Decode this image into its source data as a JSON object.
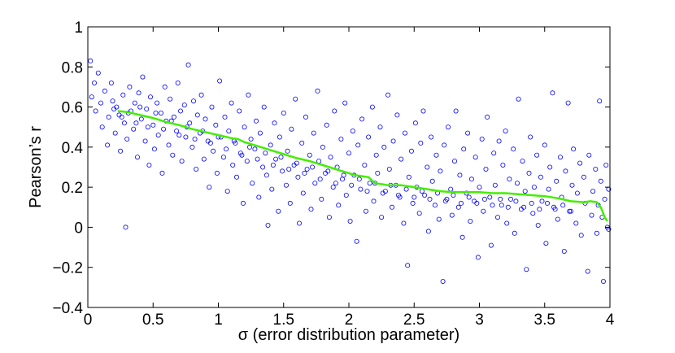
{
  "chart_data": {
    "type": "scatter",
    "title": "",
    "xlabel": "σ (error distribution parameter)",
    "ylabel": "Pearson’s r",
    "xlim": [
      0,
      4
    ],
    "ylim": [
      -0.4,
      1
    ],
    "x_ticks": [
      0,
      0.5,
      1,
      1.5,
      2,
      2.5,
      3,
      3.5,
      4
    ],
    "x_tick_labels": [
      "0",
      "0.5",
      "1",
      "1.5",
      "2",
      "2.5",
      "3",
      "3.5",
      "4"
    ],
    "y_ticks": [
      -0.4,
      -0.2,
      0,
      0.2,
      0.4,
      0.6,
      0.8,
      1
    ],
    "y_tick_labels": [
      "−0.4",
      "−0.2",
      "0",
      "0.2",
      "0.4",
      "0.6",
      "0.8",
      "1"
    ],
    "grid": false,
    "legend": "none",
    "colors": {
      "points": "#0000ff",
      "trend": "#44ee00"
    },
    "scatter_points": [
      [
        0.02,
        0.83
      ],
      [
        0.03,
        0.65
      ],
      [
        0.05,
        0.72
      ],
      [
        0.06,
        0.58
      ],
      [
        0.08,
        0.77
      ],
      [
        0.1,
        0.62
      ],
      [
        0.11,
        0.5
      ],
      [
        0.13,
        0.68
      ],
      [
        0.15,
        0.41
      ],
      [
        0.16,
        0.55
      ],
      [
        0.18,
        0.72
      ],
      [
        0.19,
        0.63
      ],
      [
        0.21,
        0.47
      ],
      [
        0.22,
        0.6
      ],
      [
        0.24,
        0.56
      ],
      [
        0.25,
        0.38
      ],
      [
        0.27,
        0.66
      ],
      [
        0.28,
        0.52
      ],
      [
        0.29,
        0.0
      ],
      [
        0.3,
        0.44
      ],
      [
        0.32,
        0.7
      ],
      [
        0.33,
        0.58
      ],
      [
        0.35,
        0.49
      ],
      [
        0.36,
        0.62
      ],
      [
        0.38,
        0.35
      ],
      [
        0.39,
        0.67
      ],
      [
        0.41,
        0.54
      ],
      [
        0.42,
        0.75
      ],
      [
        0.44,
        0.43
      ],
      [
        0.45,
        0.59
      ],
      [
        0.47,
        0.31
      ],
      [
        0.48,
        0.65
      ],
      [
        0.5,
        0.51
      ],
      [
        0.51,
        0.39
      ],
      [
        0.53,
        0.62
      ],
      [
        0.54,
        0.46
      ],
      [
        0.56,
        0.57
      ],
      [
        0.57,
        0.27
      ],
      [
        0.59,
        0.7
      ],
      [
        0.6,
        0.53
      ],
      [
        0.62,
        0.41
      ],
      [
        0.63,
        0.64
      ],
      [
        0.65,
        0.36
      ],
      [
        0.66,
        0.55
      ],
      [
        0.68,
        0.48
      ],
      [
        0.69,
        0.72
      ],
      [
        0.71,
        0.58
      ],
      [
        0.72,
        0.33
      ],
      [
        0.74,
        0.61
      ],
      [
        0.75,
        0.45
      ],
      [
        0.77,
        0.81
      ],
      [
        0.78,
        0.52
      ],
      [
        0.8,
        0.4
      ],
      [
        0.81,
        0.63
      ],
      [
        0.83,
        0.29
      ],
      [
        0.84,
        0.56
      ],
      [
        0.86,
        0.47
      ],
      [
        0.87,
        0.66
      ],
      [
        0.89,
        0.34
      ],
      [
        0.9,
        0.54
      ],
      [
        0.92,
        0.43
      ],
      [
        0.93,
        0.2
      ],
      [
        0.95,
        0.6
      ],
      [
        0.96,
        0.38
      ],
      [
        0.98,
        0.51
      ],
      [
        0.99,
        0.27
      ],
      [
        1.01,
        0.73
      ],
      [
        1.02,
        0.45
      ],
      [
        1.04,
        0.35
      ],
      [
        1.05,
        0.55
      ],
      [
        1.07,
        0.18
      ],
      [
        1.08,
        0.48
      ],
      [
        1.1,
        0.62
      ],
      [
        1.11,
        0.31
      ],
      [
        1.13,
        0.42
      ],
      [
        1.14,
        0.25
      ],
      [
        1.16,
        0.58
      ],
      [
        1.17,
        0.37
      ],
      [
        1.19,
        0.12
      ],
      [
        1.2,
        0.5
      ],
      [
        1.22,
        0.33
      ],
      [
        1.23,
        0.66
      ],
      [
        1.25,
        0.44
      ],
      [
        1.26,
        0.22
      ],
      [
        1.28,
        0.39
      ],
      [
        1.29,
        0.53
      ],
      [
        1.31,
        0.15
      ],
      [
        1.32,
        0.47
      ],
      [
        1.34,
        0.3
      ],
      [
        1.35,
        0.6
      ],
      [
        1.37,
        0.26
      ],
      [
        1.38,
        0.01
      ],
      [
        1.4,
        0.41
      ],
      [
        1.41,
        0.19
      ],
      [
        1.43,
        0.52
      ],
      [
        1.44,
        0.34
      ],
      [
        1.46,
        0.08
      ],
      [
        1.47,
        0.45
      ],
      [
        1.49,
        0.28
      ],
      [
        1.5,
        0.57
      ],
      [
        1.52,
        0.21
      ],
      [
        1.53,
        0.38
      ],
      [
        1.55,
        0.12
      ],
      [
        1.56,
        0.49
      ],
      [
        1.58,
        0.31
      ],
      [
        1.59,
        0.64
      ],
      [
        1.61,
        0.25
      ],
      [
        1.62,
        0.02
      ],
      [
        1.64,
        0.42
      ],
      [
        1.65,
        0.17
      ],
      [
        1.67,
        0.55
      ],
      [
        1.68,
        0.29
      ],
      [
        1.7,
        0.36
      ],
      [
        1.71,
        0.09
      ],
      [
        1.73,
        0.47
      ],
      [
        1.74,
        0.22
      ],
      [
        1.76,
        0.68
      ],
      [
        1.77,
        0.33
      ],
      [
        1.79,
        0.14
      ],
      [
        1.8,
        0.4
      ],
      [
        1.82,
        0.27
      ],
      [
        1.83,
        0.51
      ],
      [
        1.85,
        0.05
      ],
      [
        1.86,
        0.35
      ],
      [
        1.88,
        0.2
      ],
      [
        1.89,
        0.58
      ],
      [
        1.91,
        0.3
      ],
      [
        1.92,
        0.11
      ],
      [
        1.94,
        0.44
      ],
      [
        1.95,
        0.24
      ],
      [
        1.97,
        0.62
      ],
      [
        1.98,
        0.16
      ],
      [
        2.0,
        0.37
      ],
      [
        2.01,
        0.03
      ],
      [
        2.03,
        0.48
      ],
      [
        2.04,
        0.26
      ],
      [
        2.06,
        -0.07
      ],
      [
        2.07,
        0.41
      ],
      [
        2.09,
        0.19
      ],
      [
        2.1,
        0.54
      ],
      [
        2.12,
        0.31
      ],
      [
        2.13,
        0.08
      ],
      [
        2.15,
        0.45
      ],
      [
        2.16,
        0.22
      ],
      [
        2.18,
        0.6
      ],
      [
        2.19,
        0.13
      ],
      [
        2.21,
        0.36
      ],
      [
        2.22,
        0.27
      ],
      [
        2.24,
        0.5
      ],
      [
        2.25,
        0.05
      ],
      [
        2.27,
        0.4
      ],
      [
        2.28,
        0.18
      ],
      [
        2.3,
        0.66
      ],
      [
        2.31,
        0.29
      ],
      [
        2.33,
        0.1
      ],
      [
        2.34,
        0.43
      ],
      [
        2.36,
        0.21
      ],
      [
        2.37,
        0.56
      ],
      [
        2.39,
        0.15
      ],
      [
        2.4,
        0.34
      ],
      [
        2.42,
        0.02
      ],
      [
        2.43,
        0.47
      ],
      [
        2.45,
        -0.19
      ],
      [
        2.46,
        0.25
      ],
      [
        2.48,
        0.38
      ],
      [
        2.49,
        0.12
      ],
      [
        2.51,
        0.52
      ],
      [
        2.52,
        0.2
      ],
      [
        2.54,
        0.07
      ],
      [
        2.55,
        0.42
      ],
      [
        2.57,
        0.58
      ],
      [
        2.58,
        0.16
      ],
      [
        2.6,
        0.3
      ],
      [
        2.61,
        -0.02
      ],
      [
        2.63,
        0.45
      ],
      [
        2.64,
        0.23
      ],
      [
        2.66,
        0.11
      ],
      [
        2.67,
        0.36
      ],
      [
        2.69,
        0.04
      ],
      [
        2.7,
        0.28
      ],
      [
        2.72,
        -0.27
      ],
      [
        2.73,
        0.41
      ],
      [
        2.75,
        0.14
      ],
      [
        2.76,
        0.5
      ],
      [
        2.78,
        0.19
      ],
      [
        2.79,
        0.06
      ],
      [
        2.81,
        0.33
      ],
      [
        2.82,
        0.58
      ],
      [
        2.84,
        0.1
      ],
      [
        2.85,
        0.26
      ],
      [
        2.87,
        -0.05
      ],
      [
        2.88,
        0.39
      ],
      [
        2.9,
        0.17
      ],
      [
        2.91,
        0.47
      ],
      [
        2.93,
        0.03
      ],
      [
        2.94,
        0.24
      ],
      [
        2.96,
        0.13
      ],
      [
        2.97,
        0.35
      ],
      [
        2.99,
        -0.15
      ],
      [
        3.0,
        0.2
      ],
      [
        3.02,
        0.44
      ],
      [
        3.03,
        0.08
      ],
      [
        3.05,
        0.29
      ],
      [
        3.06,
        0.55
      ],
      [
        3.08,
        0.15
      ],
      [
        3.09,
        -0.09
      ],
      [
        3.11,
        0.37
      ],
      [
        3.12,
        0.21
      ],
      [
        3.14,
        0.05
      ],
      [
        3.15,
        0.43
      ],
      [
        3.17,
        0.11
      ],
      [
        3.18,
        0.31
      ],
      [
        3.2,
        0.48
      ],
      [
        3.21,
        0.02
      ],
      [
        3.23,
        0.24
      ],
      [
        3.24,
        0.14
      ],
      [
        3.26,
        0.39
      ],
      [
        3.27,
        -0.03
      ],
      [
        3.29,
        0.22
      ],
      [
        3.3,
        0.64
      ],
      [
        3.32,
        0.09
      ],
      [
        3.33,
        0.33
      ],
      [
        3.35,
        0.18
      ],
      [
        3.36,
        -0.21
      ],
      [
        3.38,
        0.27
      ],
      [
        3.39,
        0.45
      ],
      [
        3.41,
        0.07
      ],
      [
        3.42,
        0.2
      ],
      [
        3.44,
        0.36
      ],
      [
        3.45,
        0.01
      ],
      [
        3.47,
        0.25
      ],
      [
        3.48,
        0.13
      ],
      [
        3.5,
        0.41
      ],
      [
        3.51,
        -0.08
      ],
      [
        3.53,
        0.19
      ],
      [
        3.54,
        0.3
      ],
      [
        3.56,
        0.67
      ],
      [
        3.57,
        0.1
      ],
      [
        3.59,
        0.23
      ],
      [
        3.6,
        0.04
      ],
      [
        3.62,
        0.35
      ],
      [
        3.63,
        0.15
      ],
      [
        3.65,
        -0.12
      ],
      [
        3.66,
        0.28
      ],
      [
        3.68,
        0.62
      ],
      [
        3.69,
        0.08
      ],
      [
        3.71,
        0.21
      ],
      [
        3.72,
        0.39
      ],
      [
        3.74,
        0.02
      ],
      [
        3.75,
        0.17
      ],
      [
        3.77,
        0.32
      ],
      [
        3.78,
        -0.04
      ],
      [
        3.8,
        0.25
      ],
      [
        3.81,
        0.12
      ],
      [
        3.83,
        -0.22
      ],
      [
        3.84,
        0.36
      ],
      [
        3.86,
        0.06
      ],
      [
        3.87,
        0.18
      ],
      [
        3.89,
        0.29
      ],
      [
        3.9,
        -0.03
      ],
      [
        3.91,
        0.11
      ],
      [
        3.92,
        0.63
      ],
      [
        3.93,
        0.23
      ],
      [
        3.94,
        0.05
      ],
      [
        3.95,
        -0.27
      ],
      [
        3.96,
        0.14
      ],
      [
        3.97,
        0.31
      ],
      [
        3.98,
        0.0
      ],
      [
        3.99,
        0.19
      ],
      [
        3.99,
        -0.01
      ],
      [
        0.2,
        0.59
      ],
      [
        0.26,
        0.55
      ],
      [
        0.31,
        0.57
      ],
      [
        0.37,
        0.52
      ],
      [
        0.4,
        0.6
      ],
      [
        0.46,
        0.5
      ],
      [
        0.52,
        0.57
      ],
      [
        0.58,
        0.49
      ],
      [
        0.64,
        0.53
      ],
      [
        0.7,
        0.46
      ],
      [
        0.76,
        0.5
      ],
      [
        0.82,
        0.44
      ],
      [
        0.88,
        0.48
      ],
      [
        0.94,
        0.42
      ],
      [
        1.0,
        0.45
      ],
      [
        1.06,
        0.39
      ],
      [
        1.12,
        0.43
      ],
      [
        1.18,
        0.36
      ],
      [
        1.24,
        0.4
      ],
      [
        1.3,
        0.34
      ],
      [
        1.36,
        0.37
      ],
      [
        1.42,
        0.31
      ],
      [
        1.48,
        0.35
      ],
      [
        1.54,
        0.29
      ],
      [
        1.6,
        0.32
      ],
      [
        1.66,
        0.27
      ],
      [
        1.72,
        0.3
      ],
      [
        1.78,
        0.24
      ],
      [
        1.84,
        0.28
      ],
      [
        1.9,
        0.22
      ],
      [
        1.96,
        0.26
      ],
      [
        2.02,
        0.21
      ],
      [
        2.08,
        0.24
      ],
      [
        2.14,
        0.18
      ],
      [
        2.2,
        0.22
      ],
      [
        2.26,
        0.17
      ],
      [
        2.32,
        0.21
      ],
      [
        2.38,
        0.16
      ],
      [
        2.44,
        0.19
      ],
      [
        2.5,
        0.15
      ],
      [
        2.56,
        0.18
      ],
      [
        2.62,
        0.14
      ],
      [
        2.68,
        0.17
      ],
      [
        2.74,
        0.13
      ],
      [
        2.8,
        0.16
      ],
      [
        2.86,
        0.12
      ],
      [
        2.92,
        0.15
      ],
      [
        2.98,
        0.12
      ],
      [
        3.04,
        0.14
      ],
      [
        3.1,
        0.11
      ],
      [
        3.16,
        0.14
      ],
      [
        3.22,
        0.1
      ],
      [
        3.28,
        0.13
      ],
      [
        3.34,
        0.1
      ],
      [
        3.4,
        0.12
      ],
      [
        3.46,
        0.09
      ],
      [
        3.52,
        0.12
      ],
      [
        3.58,
        0.09
      ],
      [
        3.64,
        0.11
      ],
      [
        3.7,
        0.08
      ]
    ],
    "trend_line": [
      [
        0.23,
        0.58
      ],
      [
        0.3,
        0.575
      ],
      [
        0.4,
        0.56
      ],
      [
        0.5,
        0.545
      ],
      [
        0.6,
        0.525
      ],
      [
        0.7,
        0.51
      ],
      [
        0.8,
        0.49
      ],
      [
        0.9,
        0.475
      ],
      [
        1.0,
        0.46
      ],
      [
        1.1,
        0.445
      ],
      [
        1.15,
        0.44
      ],
      [
        1.2,
        0.425
      ],
      [
        1.3,
        0.405
      ],
      [
        1.4,
        0.385
      ],
      [
        1.5,
        0.365
      ],
      [
        1.6,
        0.345
      ],
      [
        1.7,
        0.33
      ],
      [
        1.8,
        0.31
      ],
      [
        1.9,
        0.29
      ],
      [
        2.0,
        0.27
      ],
      [
        2.05,
        0.26
      ],
      [
        2.1,
        0.255
      ],
      [
        2.15,
        0.25
      ],
      [
        2.2,
        0.22
      ],
      [
        2.25,
        0.215
      ],
      [
        2.3,
        0.21
      ],
      [
        2.4,
        0.21
      ],
      [
        2.5,
        0.2
      ],
      [
        2.6,
        0.19
      ],
      [
        2.7,
        0.18
      ],
      [
        2.8,
        0.175
      ],
      [
        2.9,
        0.175
      ],
      [
        3.0,
        0.175
      ],
      [
        3.1,
        0.17
      ],
      [
        3.2,
        0.17
      ],
      [
        3.3,
        0.165
      ],
      [
        3.4,
        0.16
      ],
      [
        3.5,
        0.155
      ],
      [
        3.6,
        0.145
      ],
      [
        3.7,
        0.13
      ],
      [
        3.8,
        0.125
      ],
      [
        3.85,
        0.13
      ],
      [
        3.9,
        0.125
      ],
      [
        3.93,
        0.1
      ],
      [
        3.96,
        0.05
      ],
      [
        3.98,
        0.03
      ]
    ]
  }
}
